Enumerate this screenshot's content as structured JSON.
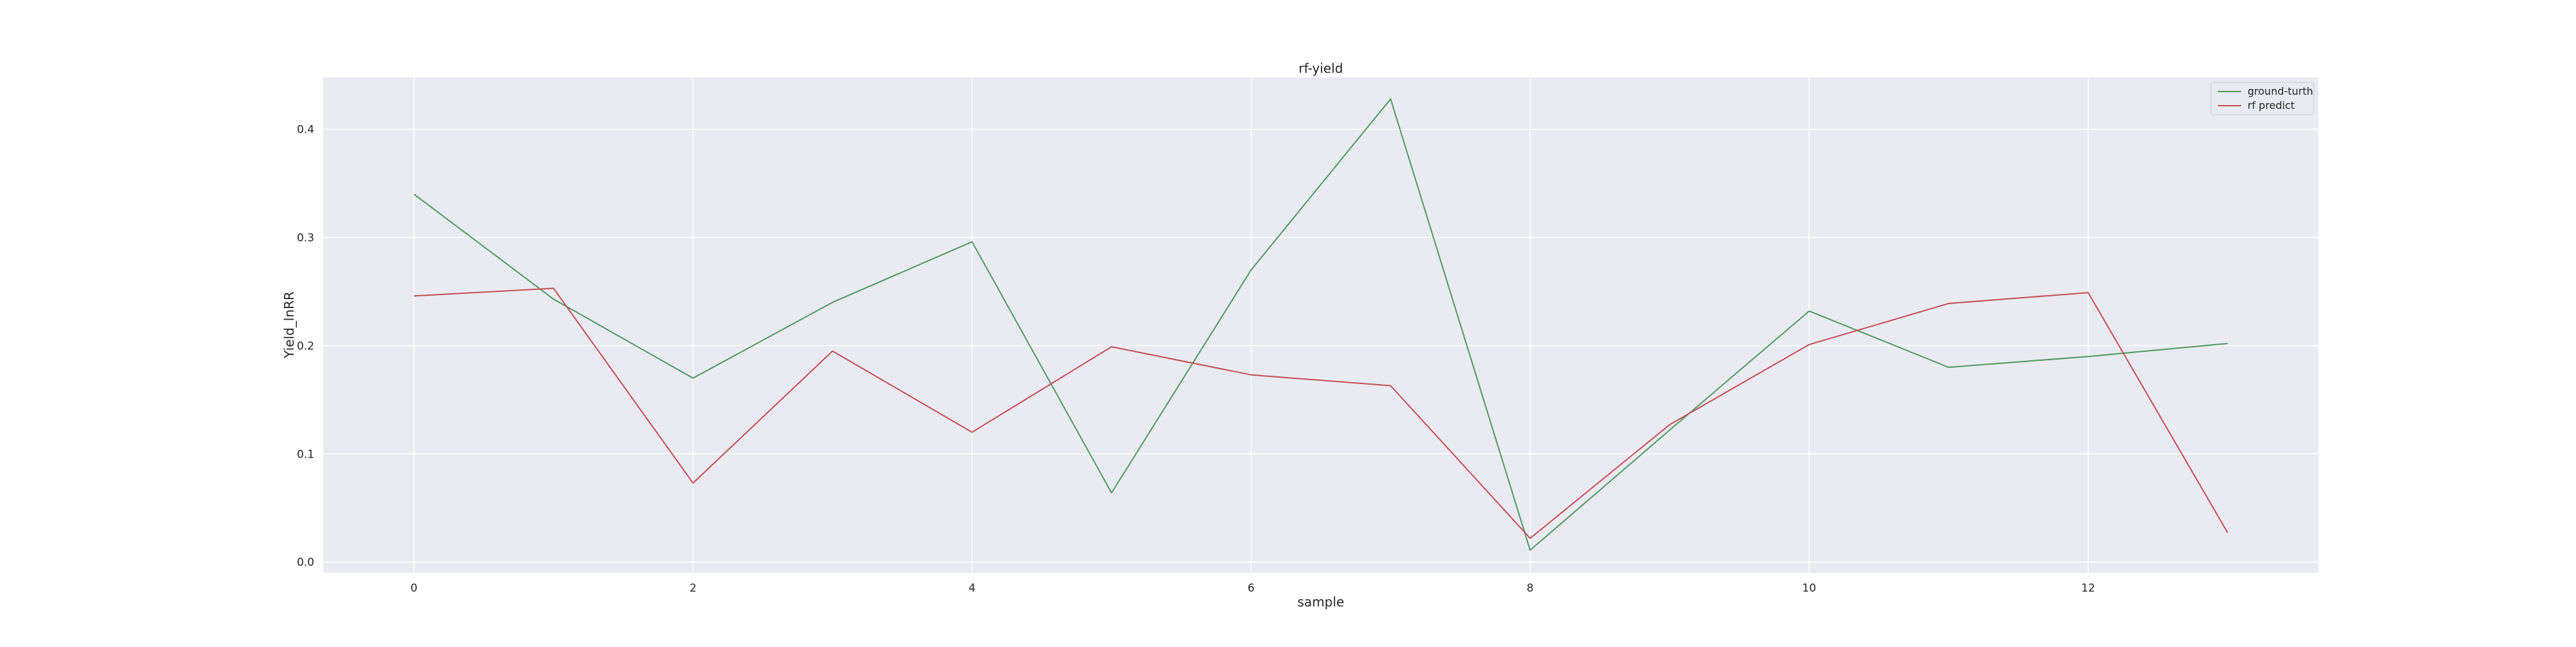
{
  "chart_data": {
    "type": "line",
    "title": "rf-yield",
    "xlabel": "sample",
    "ylabel": "Yield_lnRR",
    "x": [
      0,
      1,
      2,
      3,
      4,
      5,
      6,
      7,
      8,
      9,
      10,
      11,
      12,
      13
    ],
    "xlim": [
      -0.65,
      13.65
    ],
    "ylim": [
      -0.01,
      0.448
    ],
    "xticks": [
      0,
      2,
      4,
      6,
      8,
      10,
      12
    ],
    "yticks": [
      0.0,
      0.1,
      0.2,
      0.3,
      0.4
    ],
    "grid": true,
    "legend_position": "top-right",
    "series": [
      {
        "name": "ground-turth",
        "color": "#4e9a5e",
        "values": [
          0.34,
          0.243,
          0.17,
          0.24,
          0.296,
          0.064,
          0.27,
          0.428,
          0.011,
          0.122,
          0.232,
          0.18,
          0.19,
          0.202
        ]
      },
      {
        "name": "rf predict",
        "color": "#c44e52",
        "values": [
          0.246,
          0.253,
          0.073,
          0.195,
          0.12,
          0.199,
          0.173,
          0.163,
          0.022,
          0.127,
          0.201,
          0.239,
          0.249,
          0.027
        ]
      }
    ]
  }
}
